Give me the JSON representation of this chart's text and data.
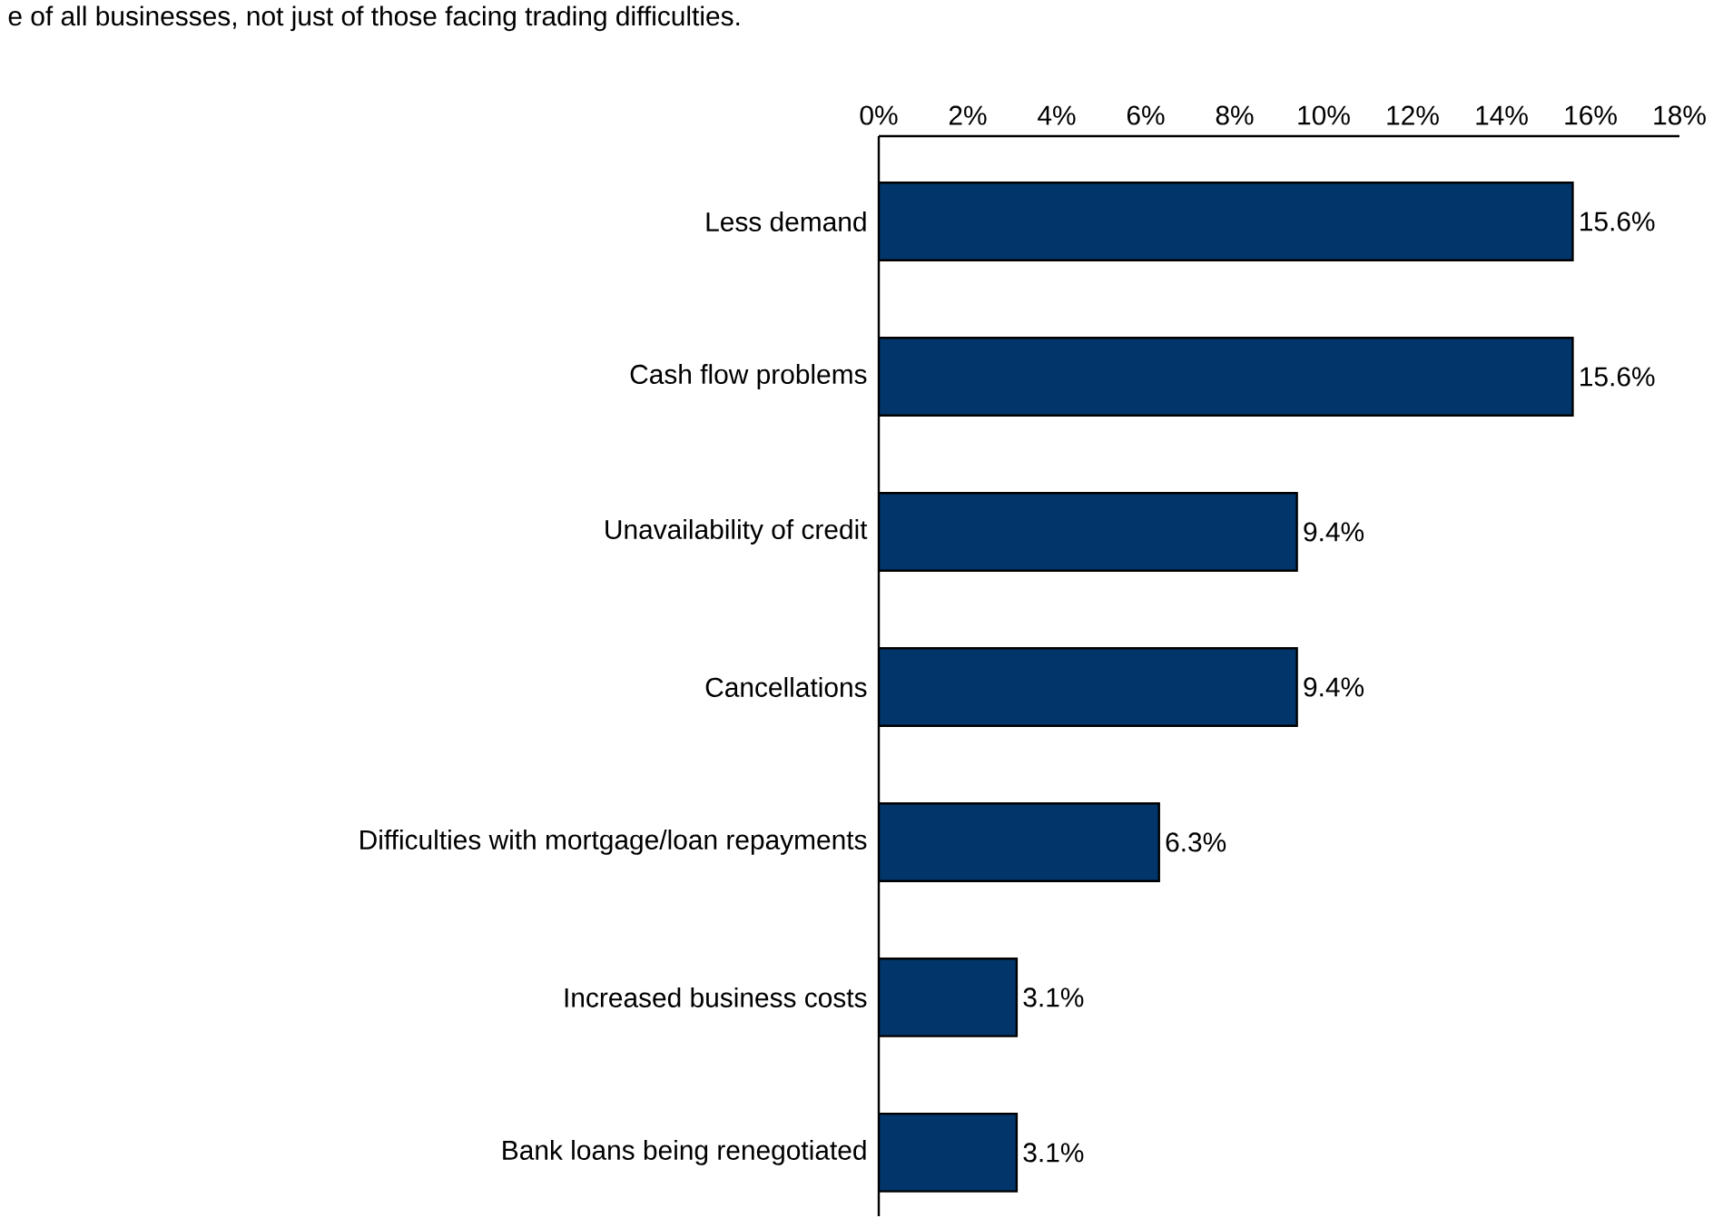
{
  "chart_data": {
    "type": "bar",
    "orientation": "horizontal",
    "title": "e of all businesses, not just of those facing trading difficulties.",
    "categories": [
      "Less demand",
      "Cash flow problems",
      "Unavailability of credit",
      "Cancellations",
      "Difficulties with mortgage/loan repayments",
      "Increased business costs",
      "Bank loans being renegotiated"
    ],
    "values": [
      15.6,
      15.6,
      9.4,
      9.4,
      6.3,
      3.1,
      3.1
    ],
    "value_labels": [
      "15.6%",
      "15.6%",
      "9.4%",
      "9.4%",
      "6.3%",
      "3.1%",
      "3.1%"
    ],
    "color": "#02366a",
    "xlim": [
      0,
      18
    ],
    "xticks": [
      {
        "value": 0,
        "label": "0%"
      },
      {
        "value": 2,
        "label": "2%"
      },
      {
        "value": 4,
        "label": "4%"
      },
      {
        "value": 6,
        "label": "6%"
      },
      {
        "value": 8,
        "label": "8%"
      },
      {
        "value": 10,
        "label": "10%"
      },
      {
        "value": 12,
        "label": "12%"
      },
      {
        "value": 14,
        "label": "14%"
      },
      {
        "value": 16,
        "label": "16%"
      },
      {
        "value": 18,
        "label": "18%"
      }
    ],
    "grid": false
  }
}
